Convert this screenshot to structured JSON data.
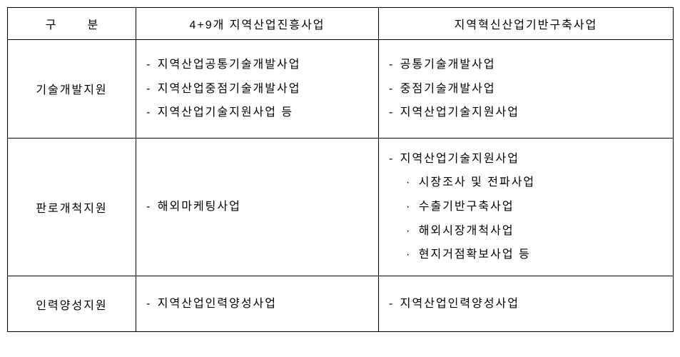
{
  "table": {
    "header": {
      "col1_gu": "구",
      "col1_bun": "분",
      "col2": "4+9개 지역산업진흥사업",
      "col3": "지역혁신산업기반구축사업"
    },
    "rows": [
      {
        "category": "기술개발지원",
        "col2_items": [
          "지역산업공통기술개발사업",
          "지역산업중점기술개발사업",
          "지역산업기술지원사업 등"
        ],
        "col3_items": [
          "공통기술개발사업",
          "중점기술개발사업",
          "지역산업기술지원사업"
        ]
      },
      {
        "category": "판로개척지원",
        "col2_items": [
          "해외마케팅사업"
        ],
        "col3_main": "지역산업기술지원사업",
        "col3_subs": [
          "시장조사 및 전파사업",
          "수출기반구축사업",
          "해외시장개척사업",
          "현지거점확보사업 등"
        ]
      },
      {
        "category": "인력양성지원",
        "col2_items": [
          "지역산업인력양성사업"
        ],
        "col3_items": [
          "지역산업인력양성사업"
        ]
      }
    ]
  }
}
